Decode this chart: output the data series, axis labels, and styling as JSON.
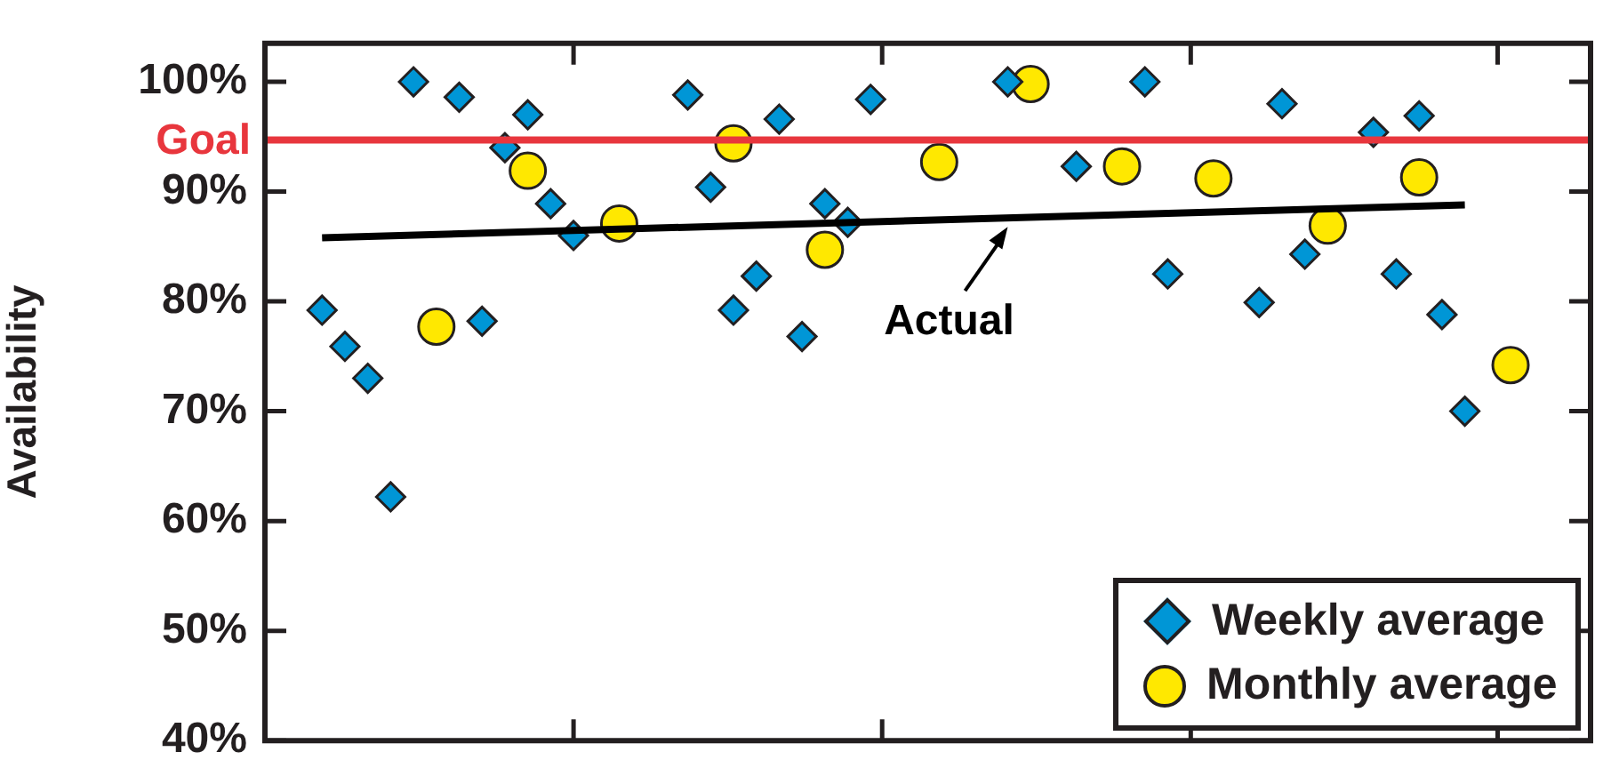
{
  "chart_data": {
    "type": "scatter",
    "ylabel": "Availability",
    "categories": [
      null,
      null,
      null,
      null,
      null,
      null,
      null,
      null,
      null,
      null,
      null,
      null,
      null,
      null,
      null,
      null,
      null,
      null,
      null,
      null,
      null,
      null,
      null,
      null,
      null,
      null,
      null,
      null,
      null,
      null,
      null,
      null,
      null,
      null,
      null,
      null,
      null,
      null,
      null,
      null,
      null,
      null,
      null,
      null,
      null,
      null,
      null,
      null,
      null,
      null,
      null,
      null,
      null,
      null,
      null,
      null,
      null,
      null
    ],
    "ylim": [
      40,
      103.5
    ],
    "yticks": [
      {
        "value": 40,
        "label": "40%"
      },
      {
        "value": 50,
        "label": "50%"
      },
      {
        "value": 60,
        "label": "60%"
      },
      {
        "value": 70,
        "label": "70%"
      },
      {
        "value": 80,
        "label": "80%"
      },
      {
        "value": 90,
        "label": "90%"
      },
      {
        "value": 100,
        "label": "100%"
      }
    ],
    "tick_labels": "y",
    "legend": "bottom right",
    "ref_lines": [
      {
        "axis": "y",
        "value": 94.7,
        "label": "Goal",
        "color": "#e8363d"
      }
    ],
    "series": [
      {
        "name": "Weekly average",
        "marker": "diamond",
        "color": "#0096d6",
        "values": [
          null,
          null,
          79.2,
          75.9,
          73.0,
          62.2,
          100.0,
          null,
          98.6,
          78.2,
          94.0,
          97.0,
          88.9,
          86.0,
          null,
          null,
          null,
          null,
          98.8,
          90.4,
          79.2,
          82.3,
          96.6,
          76.8,
          88.9,
          87.2,
          98.4,
          null,
          null,
          null,
          null,
          null,
          100.0,
          null,
          null,
          92.3,
          null,
          null,
          100.0,
          82.5,
          null,
          null,
          null,
          79.9,
          98.0,
          84.3,
          null,
          null,
          95.4,
          82.5,
          96.9,
          78.8,
          70.0,
          null,
          null,
          null,
          null,
          null
        ]
      },
      {
        "name": "Monthly average",
        "marker": "circle",
        "color": "#ffe800",
        "values": [
          null,
          null,
          null,
          null,
          null,
          null,
          null,
          77.7,
          null,
          null,
          null,
          91.9,
          null,
          null,
          null,
          87.1,
          null,
          null,
          null,
          null,
          94.4,
          null,
          null,
          null,
          84.7,
          null,
          null,
          null,
          null,
          92.7,
          null,
          null,
          null,
          99.8,
          null,
          null,
          null,
          92.3,
          null,
          null,
          null,
          91.2,
          null,
          null,
          null,
          null,
          86.9,
          null,
          null,
          null,
          91.3,
          null,
          null,
          null,
          74.2,
          null,
          null,
          null
        ]
      },
      {
        "name": "Actual",
        "type": "line",
        "marker": "none",
        "color": "#000000",
        "values": [
          null,
          null,
          85.8,
          null,
          null,
          null,
          null,
          null,
          null,
          null,
          null,
          null,
          null,
          null,
          null,
          null,
          null,
          null,
          null,
          null,
          null,
          null,
          null,
          null,
          null,
          null,
          null,
          null,
          null,
          null,
          null,
          null,
          null,
          null,
          null,
          null,
          null,
          null,
          null,
          null,
          null,
          null,
          null,
          null,
          null,
          null,
          null,
          null,
          null,
          null,
          null,
          null,
          88.8,
          null,
          null,
          null,
          null,
          null
        ]
      }
    ]
  }
}
